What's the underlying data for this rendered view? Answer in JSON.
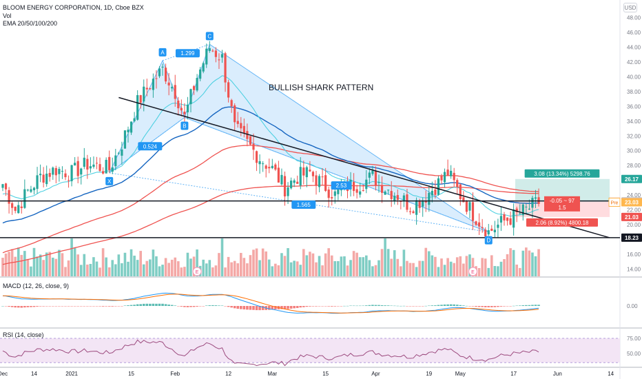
{
  "header": {
    "symbol_line": "BLOOM ENERGY CORPORATION, 1D, Cboe BZX",
    "vol_label": "Vol",
    "ema_label": "EMA 20/50/100/200",
    "currency_button": "USD"
  },
  "panes": {
    "macd_label": "MACD (12, 26, close, 9)",
    "rsi_label": "RSI (14, close)"
  },
  "annotations": {
    "pattern_title": "BULLISH SHARK PATTERN",
    "points": [
      {
        "label": "X",
        "date_index": 34,
        "price": 27.0
      },
      {
        "label": "A",
        "date_index": 51,
        "price": 42.2
      },
      {
        "label": "B",
        "date_index": 58,
        "price": 34.5
      },
      {
        "label": "C",
        "date_index": 66,
        "price": 44.4
      },
      {
        "label": "D",
        "date_index": 155,
        "price": 19.0
      }
    ],
    "ratios": [
      {
        "text": "1.299",
        "date_index": 59,
        "price": 43.2
      },
      {
        "text": "0.524",
        "date_index": 47,
        "price": 30.6
      },
      {
        "text": "2.53",
        "date_index": 108,
        "price": 25.3
      },
      {
        "text": "1.565",
        "date_index": 96,
        "price": 22.7
      }
    ],
    "long_position": {
      "target_text": "3.08 (13.34%) 5298.76",
      "center_text_1": "-0.05 ~ 97",
      "center_text_2": "1.5",
      "stop_text": "2.06 (8.92%) 4800.18",
      "target_price": 26.17,
      "entry_price": 23.09,
      "stop_price": 21.03
    },
    "support_line_price": 23.2,
    "low_line_price": 18.23
  },
  "price_tags": [
    {
      "text": "26.17",
      "price": 26.17,
      "bg": "#26a69a"
    },
    {
      "text": "23.10",
      "price": 23.1,
      "bg": "#131722"
    },
    {
      "text": "23.09",
      "price": 23.09,
      "bg": "#d1d4dc"
    },
    {
      "text": "23.04",
      "price": 23.04,
      "bg": "#e57373",
      "prefix": "BE"
    },
    {
      "text": "23.03",
      "price": 23.03,
      "bg": "#ffb74d",
      "prefix": "Pre"
    },
    {
      "text": "21.03",
      "price": 21.03,
      "bg": "#ef5350"
    },
    {
      "text": "18.23",
      "price": 18.23,
      "bg": "#131722"
    }
  ],
  "chart_data": {
    "type": "candlestick",
    "title": "BLOOM ENERGY CORPORATION, 1D, Cboe BZX",
    "price_axis": {
      "range": [
        13,
        49
      ],
      "ticks": [
        14,
        16,
        18,
        20,
        22,
        24,
        26,
        28,
        30,
        32,
        34,
        36,
        38,
        40,
        42,
        44,
        46,
        48
      ]
    },
    "macd_axis": {
      "ticks": [
        "0.00"
      ]
    },
    "rsi_axis": {
      "ticks": [
        "75.00",
        "50.00"
      ],
      "range": [
        0,
        100
      ]
    },
    "x_axis": {
      "ticks": [
        {
          "label": "Dec",
          "date_index": 0
        },
        {
          "label": "14",
          "date_index": 10
        },
        {
          "label": "2021",
          "date_index": 22
        },
        {
          "label": "15",
          "date_index": 41
        },
        {
          "label": "Feb",
          "date_index": 55
        },
        {
          "label": "12",
          "date_index": 72
        },
        {
          "label": "Mar",
          "date_index": 86
        },
        {
          "label": "15",
          "date_index": 103
        },
        {
          "label": "Apr",
          "date_index": 119
        },
        {
          "label": "19",
          "date_index": 136
        },
        {
          "label": "May",
          "date_index": 146
        },
        {
          "label": "17",
          "date_index": 163
        },
        {
          "label": "Jun",
          "date_index": 177
        },
        {
          "label": "14",
          "date_index": 194
        },
        {
          "label": "Ju",
          "date_index": 210
        }
      ]
    },
    "keypoints": {
      "dates": [
        0,
        4,
        8,
        12,
        17,
        22,
        27,
        31,
        34,
        38,
        43,
        47,
        51,
        55,
        58,
        62,
        66,
        70,
        74,
        78,
        82,
        86,
        90,
        94,
        98,
        102,
        106,
        110,
        114,
        118,
        122,
        126,
        130,
        134,
        138,
        142,
        146,
        150,
        155,
        160,
        165,
        171
      ],
      "close": [
        25.5,
        22.0,
        24.5,
        26.5,
        27.5,
        27.0,
        28.2,
        27.8,
        27.5,
        31.0,
        36.5,
        39.0,
        41.0,
        38.0,
        34.5,
        40.0,
        44.0,
        42.5,
        33.0,
        31.0,
        29.0,
        27.5,
        25.0,
        26.5,
        27.0,
        25.5,
        24.0,
        25.2,
        25.5,
        26.5,
        25.0,
        24.0,
        22.5,
        23.5,
        25.2,
        27.0,
        24.0,
        21.5,
        19.0,
        20.5,
        21.5,
        23.0
      ]
    },
    "series": [
      {
        "name": "Vol",
        "type": "histogram"
      },
      {
        "name": "EMA 20",
        "color": "#4dd0e1"
      },
      {
        "name": "EMA 50",
        "color": "#1565c0"
      },
      {
        "name": "EMA 100",
        "color": "#ef5350"
      },
      {
        "name": "EMA 200",
        "color": "#ef5350"
      }
    ]
  },
  "colors": {
    "up": "#26a69a",
    "down": "#ef5350",
    "vol_up": "#7fcdc4",
    "vol_down": "#f4a8a6",
    "pattern_fill": "#bbdefb",
    "pattern_stroke": "#64b5f6",
    "label_bg": "#2196f3",
    "rsi_fill": "#f3e5f5",
    "rsi_line": "#9c4a7e",
    "macd_line": "#2196f3",
    "signal_line": "#ff6d00"
  },
  "events": [
    {
      "label": "E",
      "date_index": 62
    },
    {
      "label": "E",
      "date_index": 150
    }
  ]
}
